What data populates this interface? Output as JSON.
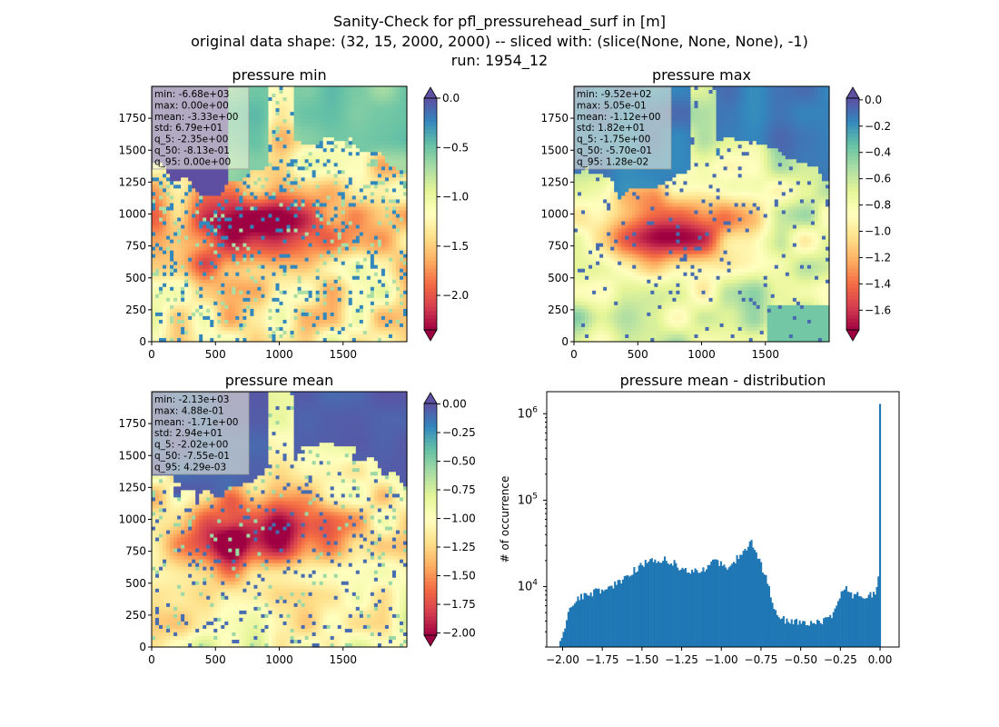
{
  "figure": {
    "title_line1": "Sanity-Check for pfl_pressurehead_surf in [m]",
    "title_line2": "original data shape: (32, 15, 2000, 2000) -- sliced with: (slice(None, None, None), -1)",
    "title_line3": "run: 1954_12"
  },
  "chart_data": [
    {
      "type": "heatmap",
      "title": "pressure min",
      "xlim": [
        0,
        2000
      ],
      "ylim": [
        0,
        2000
      ],
      "x_ticks": [
        "0",
        "500",
        "1000",
        "1500"
      ],
      "y_ticks": [
        "0",
        "250",
        "500",
        "750",
        "1000",
        "1250",
        "1500",
        "1750"
      ],
      "colorbar": {
        "colormap": "Spectral",
        "range": [
          -2.35,
          0.0
        ],
        "extend_both": true,
        "ticks": [
          "0.0",
          "−0.5",
          "−1.0",
          "−1.5",
          "−2.0"
        ],
        "tick_values": [
          0.0,
          -0.5,
          -1.0,
          -1.5,
          -2.0
        ]
      },
      "stats": [
        "min: -6.68e+03",
        "max: 0.00e+00",
        "mean: -3.33e+00",
        "std: 6.79e+01",
        "q_5: -2.35e+00",
        "q_50: -8.13e-01",
        "q_95: 0.00e+00"
      ]
    },
    {
      "type": "heatmap",
      "title": "pressure max",
      "xlim": [
        0,
        2000
      ],
      "ylim": [
        0,
        2000
      ],
      "x_ticks": [
        "0",
        "500",
        "1000",
        "1500"
      ],
      "y_ticks": [
        "0",
        "250",
        "500",
        "750",
        "1000",
        "1250",
        "1500",
        "1750"
      ],
      "colorbar": {
        "colormap": "Spectral",
        "range": [
          -1.75,
          0.0128
        ],
        "extend_both": true,
        "ticks": [
          "0.0",
          "−0.2",
          "−0.4",
          "−0.6",
          "−0.8",
          "−1.0",
          "−1.2",
          "−1.4",
          "−1.6"
        ],
        "tick_values": [
          0.0,
          -0.2,
          -0.4,
          -0.6,
          -0.8,
          -1.0,
          -1.2,
          -1.4,
          -1.6
        ]
      },
      "stats": [
        "min: -9.52e+02",
        "max: 5.05e-01",
        "mean: -1.12e+00",
        "std: 1.82e+01",
        "q_5: -1.75e+00",
        "q_50: -5.70e-01",
        "q_95: 1.28e-02"
      ]
    },
    {
      "type": "heatmap",
      "title": "pressure mean",
      "xlim": [
        0,
        2000
      ],
      "ylim": [
        0,
        2000
      ],
      "x_ticks": [
        "0",
        "500",
        "1000",
        "1500"
      ],
      "y_ticks": [
        "0",
        "250",
        "500",
        "750",
        "1000",
        "1250",
        "1500",
        "1750"
      ],
      "colorbar": {
        "colormap": "Spectral",
        "range": [
          -2.02,
          0.00429
        ],
        "extend_both": true,
        "ticks": [
          "0.00",
          "−0.25",
          "−0.50",
          "−0.75",
          "−1.00",
          "−1.25",
          "−1.50",
          "−1.75",
          "−2.00"
        ],
        "tick_values": [
          0.0,
          -0.25,
          -0.5,
          -0.75,
          -1.0,
          -1.25,
          -1.5,
          -1.75,
          -2.0
        ]
      },
      "stats": [
        "min: -2.13e+03",
        "max: 4.88e-01",
        "mean: -1.71e+00",
        "std: 2.94e+01",
        "q_5: -2.02e+00",
        "q_50: -7.55e-01",
        "q_95: 4.29e-03"
      ]
    },
    {
      "type": "bar",
      "title": "pressure mean - distribution",
      "ylabel": "# of occurrence",
      "y_scale": "log",
      "color": "#1f77b4",
      "xlim": [
        -2.1,
        0.12
      ],
      "ylim": [
        2000,
        1800000
      ],
      "x_ticks": [
        "−2.00",
        "−1.75",
        "−1.50",
        "−1.25",
        "−1.00",
        "−0.75",
        "−0.50",
        "−0.25",
        "0.00"
      ],
      "x_tick_values": [
        -2.0,
        -1.75,
        -1.5,
        -1.25,
        -1.0,
        -0.75,
        -0.5,
        -0.25,
        0.0
      ],
      "y_major_ticks": [
        10000,
        100000,
        1000000
      ],
      "bin_range": [
        -2.02,
        0.00429
      ],
      "profile": [
        [
          -2.02,
          2200
        ],
        [
          -1.99,
          3200
        ],
        [
          -1.96,
          5000
        ],
        [
          -1.92,
          7200
        ],
        [
          -1.88,
          7800
        ],
        [
          -1.82,
          8300
        ],
        [
          -1.76,
          9200
        ],
        [
          -1.7,
          10000
        ],
        [
          -1.64,
          11200
        ],
        [
          -1.58,
          14000
        ],
        [
          -1.52,
          17000
        ],
        [
          -1.46,
          19500
        ],
        [
          -1.4,
          21000
        ],
        [
          -1.34,
          20500
        ],
        [
          -1.28,
          18000
        ],
        [
          -1.24,
          15500
        ],
        [
          -1.2,
          14500
        ],
        [
          -1.14,
          15000
        ],
        [
          -1.08,
          17000
        ],
        [
          -1.04,
          20000
        ],
        [
          -1.0,
          18000
        ],
        [
          -0.96,
          17000
        ],
        [
          -0.92,
          19500
        ],
        [
          -0.88,
          23000
        ],
        [
          -0.84,
          26000
        ],
        [
          -0.81,
          35000
        ],
        [
          -0.79,
          26000
        ],
        [
          -0.76,
          20000
        ],
        [
          -0.72,
          13000
        ],
        [
          -0.69,
          8000
        ],
        [
          -0.66,
          5200
        ],
        [
          -0.62,
          4200
        ],
        [
          -0.56,
          4000
        ],
        [
          -0.5,
          3900
        ],
        [
          -0.44,
          3800
        ],
        [
          -0.38,
          3900
        ],
        [
          -0.34,
          4100
        ],
        [
          -0.3,
          4700
        ],
        [
          -0.27,
          6000
        ],
        [
          -0.24,
          9000
        ],
        [
          -0.22,
          9500
        ],
        [
          -0.18,
          8000
        ],
        [
          -0.12,
          7900
        ],
        [
          -0.06,
          8000
        ],
        [
          -0.03,
          9000
        ],
        [
          -0.01,
          13000
        ],
        [
          0.0,
          1300000
        ]
      ]
    }
  ]
}
